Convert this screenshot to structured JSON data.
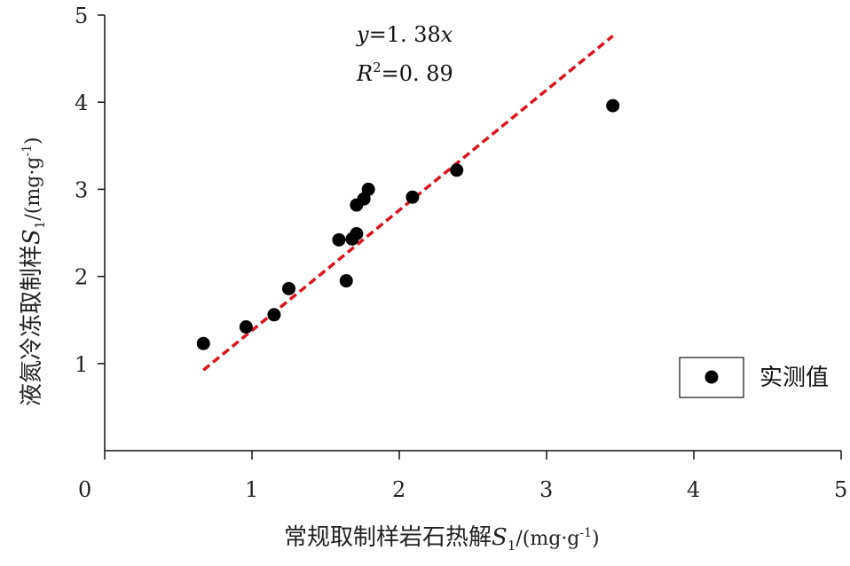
{
  "chart_data": {
    "type": "scatter",
    "xlabel_main": "常规取制样岩石热解",
    "xlabel_var": "S",
    "xlabel_sub": "1",
    "xlabel_unit_pre": "/(mg·g",
    "xlabel_unit_sup": "-1",
    "xlabel_unit_post": ")",
    "ylabel_main": "液氮冷冻取制样",
    "ylabel_var": "S",
    "ylabel_sub": "1",
    "ylabel_unit_pre": "/(mg·g",
    "ylabel_unit_sup": "-1",
    "ylabel_unit_post": ")",
    "xlim": [
      0,
      5
    ],
    "ylim": [
      0,
      5
    ],
    "x_ticks": [
      "0",
      "1",
      "2",
      "3",
      "4",
      "5"
    ],
    "y_ticks": [
      "1",
      "2",
      "3",
      "4",
      "5"
    ],
    "x_tick_values": [
      0,
      1,
      2,
      3,
      4,
      5
    ],
    "y_tick_values": [
      1,
      2,
      3,
      4,
      5
    ],
    "series": [
      {
        "name": "实测值",
        "points": [
          {
            "x": 0.67,
            "y": 1.23
          },
          {
            "x": 0.96,
            "y": 1.42
          },
          {
            "x": 1.15,
            "y": 1.56
          },
          {
            "x": 1.25,
            "y": 1.86
          },
          {
            "x": 1.59,
            "y": 2.42
          },
          {
            "x": 1.64,
            "y": 1.95
          },
          {
            "x": 1.68,
            "y": 2.43
          },
          {
            "x": 1.71,
            "y": 2.49
          },
          {
            "x": 1.71,
            "y": 2.82
          },
          {
            "x": 1.76,
            "y": 2.89
          },
          {
            "x": 1.79,
            "y": 3.0
          },
          {
            "x": 2.09,
            "y": 2.91
          },
          {
            "x": 2.39,
            "y": 3.22
          },
          {
            "x": 3.45,
            "y": 3.96
          }
        ]
      }
    ],
    "fit_line": {
      "slope": 1.38,
      "x_start": 0.67,
      "x_end": 3.45
    },
    "fit_line_color": "#d9141e",
    "marker_color": "#000000",
    "equation": {
      "var_y": "y",
      "eq_rest": "=1. 38",
      "var_x": "x"
    },
    "r2": {
      "var": "R",
      "sup": "2",
      "rest": "=0. 89"
    },
    "legend_label": "实测值",
    "legend_position": "bottom-right",
    "grid": false
  }
}
